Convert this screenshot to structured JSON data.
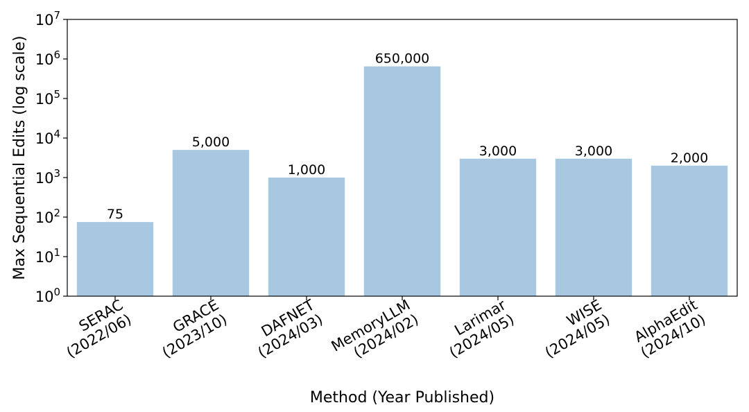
{
  "chart_data": {
    "type": "bar",
    "categories": [
      "SERAC\n(2022/06)",
      "GRACE\n(2023/10)",
      "DAFNET\n(2024/03)",
      "MemoryLLM\n(2024/02)",
      "Larimar\n(2024/05)",
      "WISE\n(2024/05)",
      "AlphaEdit\n(2024/10)"
    ],
    "values": [
      75,
      5000,
      1000,
      650000,
      3000,
      3000,
      2000
    ],
    "data_labels": [
      "75",
      "5,000",
      "1,000",
      "650,000",
      "3,000",
      "3,000",
      "2,000"
    ],
    "xlabel": "Method (Year Published)",
    "ylabel": "Max Sequential Edits (log scale)",
    "yscale": "log",
    "ylim": [
      1,
      10000000
    ],
    "y_tick_exponents": [
      0,
      1,
      2,
      3,
      4,
      5,
      6,
      7
    ],
    "grid": false,
    "legend": "none",
    "bar_color": "#a7c8e0",
    "axis_color": "#000000"
  }
}
